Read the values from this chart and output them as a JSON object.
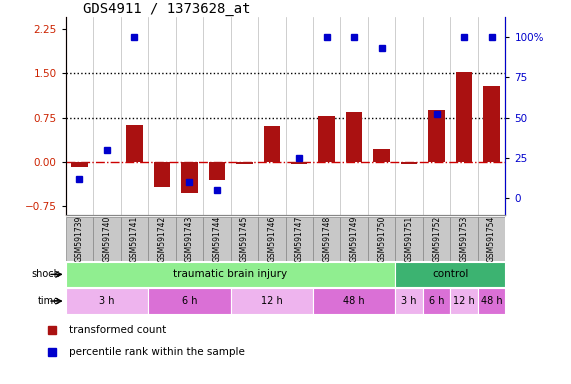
{
  "title": "GDS4911 / 1373628_at",
  "samples": [
    "GSM591739",
    "GSM591740",
    "GSM591741",
    "GSM591742",
    "GSM591743",
    "GSM591744",
    "GSM591745",
    "GSM591746",
    "GSM591747",
    "GSM591748",
    "GSM591749",
    "GSM591750",
    "GSM591751",
    "GSM591752",
    "GSM591753",
    "GSM591754"
  ],
  "red_values": [
    -0.08,
    0.0,
    0.62,
    -0.42,
    -0.52,
    -0.3,
    -0.04,
    0.6,
    -0.04,
    0.78,
    0.85,
    0.22,
    -0.04,
    0.88,
    1.52,
    1.28
  ],
  "blue_values": [
    12,
    30,
    100,
    null,
    10,
    5,
    null,
    null,
    25,
    100,
    100,
    93,
    null,
    52,
    100,
    100
  ],
  "ylim_left": [
    -0.9,
    2.45
  ],
  "ylim_right": [
    -10.28,
    112
  ],
  "yticks_left": [
    -0.75,
    0.0,
    0.75,
    1.5,
    2.25
  ],
  "yticks_right": [
    0,
    25,
    50,
    75,
    100
  ],
  "hlines": [
    1.5,
    0.75
  ],
  "shock_groups": [
    {
      "label": "traumatic brain injury",
      "start": 0,
      "end": 12,
      "color": "#90EE90"
    },
    {
      "label": "control",
      "start": 12,
      "end": 16,
      "color": "#3CB371"
    }
  ],
  "time_groups": [
    {
      "label": "3 h",
      "start": 0,
      "end": 3,
      "color": "#EEB4EE"
    },
    {
      "label": "6 h",
      "start": 3,
      "end": 6,
      "color": "#DA70D6"
    },
    {
      "label": "12 h",
      "start": 6,
      "end": 9,
      "color": "#EEB4EE"
    },
    {
      "label": "48 h",
      "start": 9,
      "end": 12,
      "color": "#DA70D6"
    },
    {
      "label": "3 h",
      "start": 12,
      "end": 13,
      "color": "#EEB4EE"
    },
    {
      "label": "6 h",
      "start": 13,
      "end": 14,
      "color": "#DA70D6"
    },
    {
      "label": "12 h",
      "start": 14,
      "end": 15,
      "color": "#EEB4EE"
    },
    {
      "label": "48 h",
      "start": 15,
      "end": 16,
      "color": "#DA70D6"
    }
  ],
  "bar_color": "#AA1111",
  "dot_color": "#0000CC",
  "background_color": "#ffffff",
  "grid_color": "#bbbbbb",
  "zero_line_color": "#cc0000",
  "dotted_line_color": "#000000",
  "left_tick_color": "#cc2200",
  "right_tick_color": "#0000cc",
  "sample_box_color": "#c8c8c8",
  "sample_box_edge": "#888888"
}
